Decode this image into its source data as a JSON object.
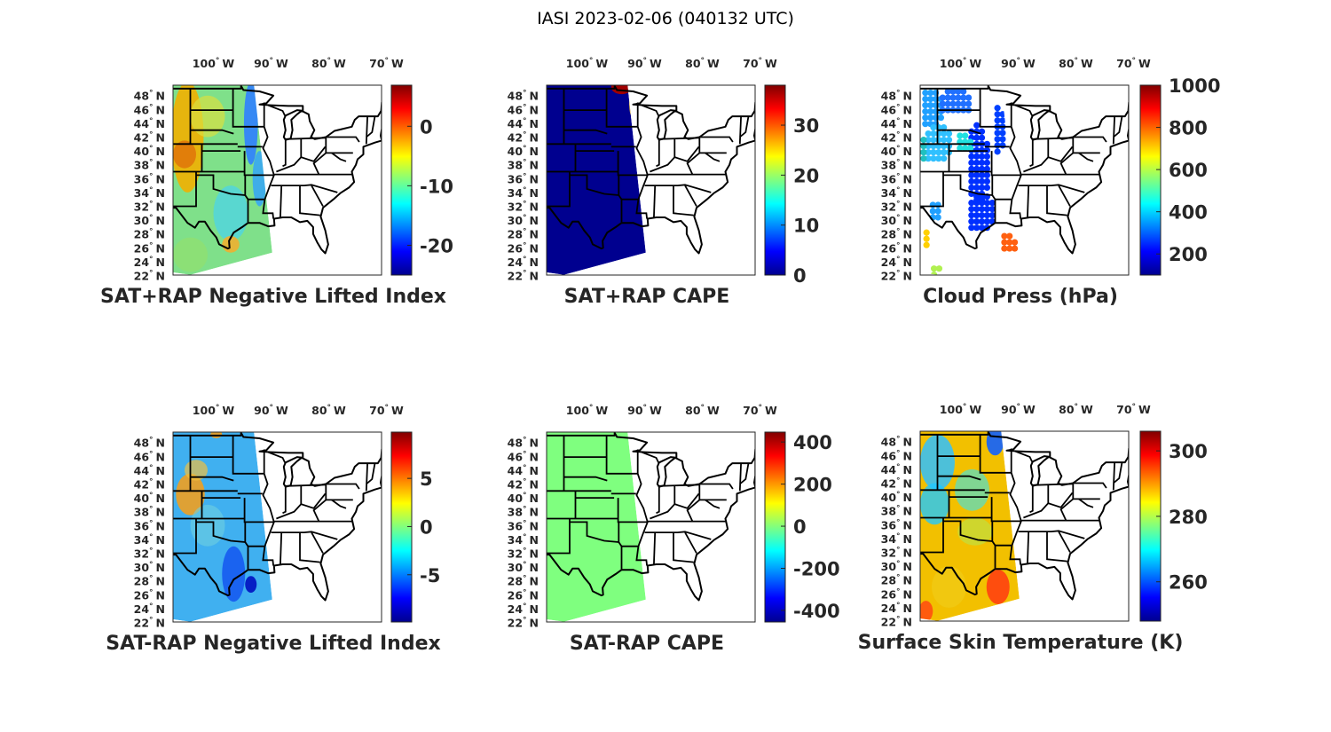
{
  "figure_title": "IASI 2023-02-06 (040132 UTC)",
  "colormap": "jet",
  "lon_ticks": [
    "100",
    "90",
    "80",
    "70"
  ],
  "lon_suffix": "W",
  "lat_ticks": [
    "48",
    "46",
    "44",
    "42",
    "40",
    "38",
    "36",
    "34",
    "32",
    "30",
    "28",
    "26",
    "24",
    "22"
  ],
  "lat_suffix": "N",
  "degree_symbol": "°",
  "panels": [
    {
      "title": "SAT+RAP Negative Lifted Index",
      "clim": [
        -25,
        6.9
      ],
      "cb_ticks": [
        "0",
        "-10",
        "-20"
      ]
    },
    {
      "title": "SAT+RAP CAPE",
      "clim": [
        0,
        38
      ],
      "cb_ticks": [
        "30",
        "20",
        "10",
        "0"
      ]
    },
    {
      "title": "Cloud Press (hPa)",
      "clim": [
        100,
        1000
      ],
      "cb_ticks": [
        "1000",
        "800",
        "600",
        "400",
        "200"
      ]
    },
    {
      "title": "SAT-RAP Negative Lifted Index",
      "clim": [
        -9.9,
        9.8
      ],
      "cb_ticks": [
        "5",
        "0",
        "-5"
      ]
    },
    {
      "title": "SAT-RAP CAPE",
      "clim": [
        -455,
        447
      ],
      "cb_ticks": [
        "400",
        "200",
        "0",
        "-200",
        "-400"
      ]
    },
    {
      "title": "Surface Skin Temperature (K)",
      "clim": [
        248,
        306
      ],
      "cb_ticks": [
        "300",
        "280",
        "260"
      ]
    }
  ]
}
